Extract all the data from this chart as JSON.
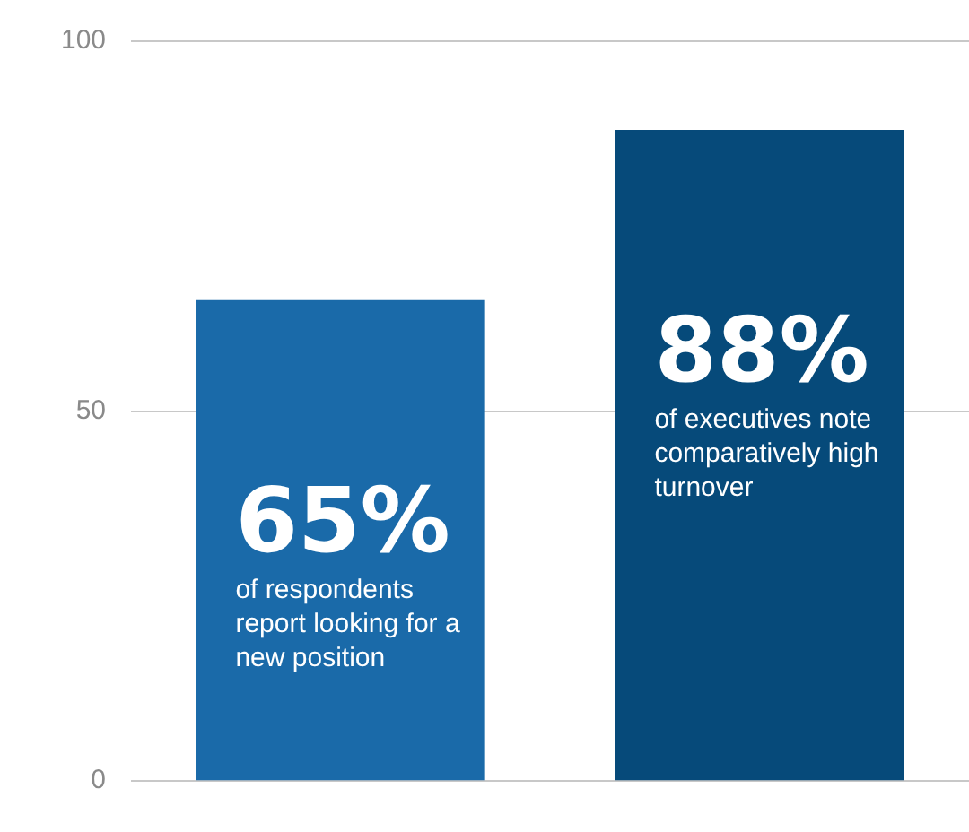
{
  "chart_data": {
    "type": "bar",
    "categories": [
      null,
      null
    ],
    "values": [
      65,
      88
    ],
    "colors": [
      "#1a6aa9",
      "#064a7a"
    ],
    "value_labels": [
      "65%",
      "88%"
    ],
    "annotations": [
      "of respondents report looking for a new position",
      "of executives note comparatively high turnover"
    ],
    "ylim": [
      0,
      100
    ],
    "yticks": [
      0,
      50,
      100
    ],
    "grid": "y",
    "legend": false
  }
}
